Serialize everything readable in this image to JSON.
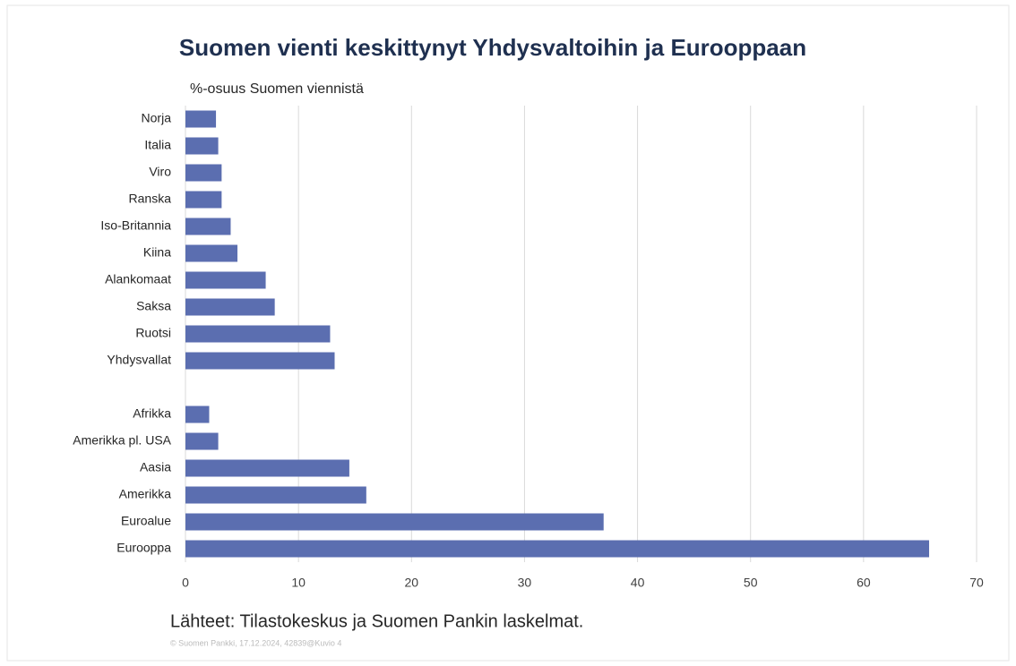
{
  "chart_data": {
    "type": "bar",
    "orientation": "horizontal",
    "title": "Suomen vienti keskittynyt Yhdysvaltoihin ja Eurooppaan",
    "subtitle": "%-osuus Suomen viennistä",
    "categories": [
      "Norja",
      "Italia",
      "Viro",
      "Ranska",
      "Iso-Britannia",
      "Kiina",
      "Alankomaat",
      "Saksa",
      "Ruotsi",
      "Yhdysvallat",
      null,
      "Afrikka",
      "Amerikka pl. USA",
      "Aasia",
      "Amerikka",
      "Euroalue",
      "Eurooppa"
    ],
    "values": [
      2.7,
      2.9,
      3.2,
      3.2,
      4.0,
      4.6,
      7.1,
      7.9,
      12.8,
      13.2,
      null,
      2.1,
      2.9,
      14.5,
      16.0,
      37.0,
      65.8
    ],
    "color": "#5b6eb0",
    "xlim": [
      0,
      70
    ],
    "xticks": [
      0,
      10,
      20,
      30,
      40,
      50,
      60,
      70
    ],
    "grid": true,
    "source": "Lähteet: Tilastokeskus ja Suomen Pankin laskelmat.",
    "note": "© Suomen Pankki, 17.12.2024, 42839@Kuvio 4"
  }
}
